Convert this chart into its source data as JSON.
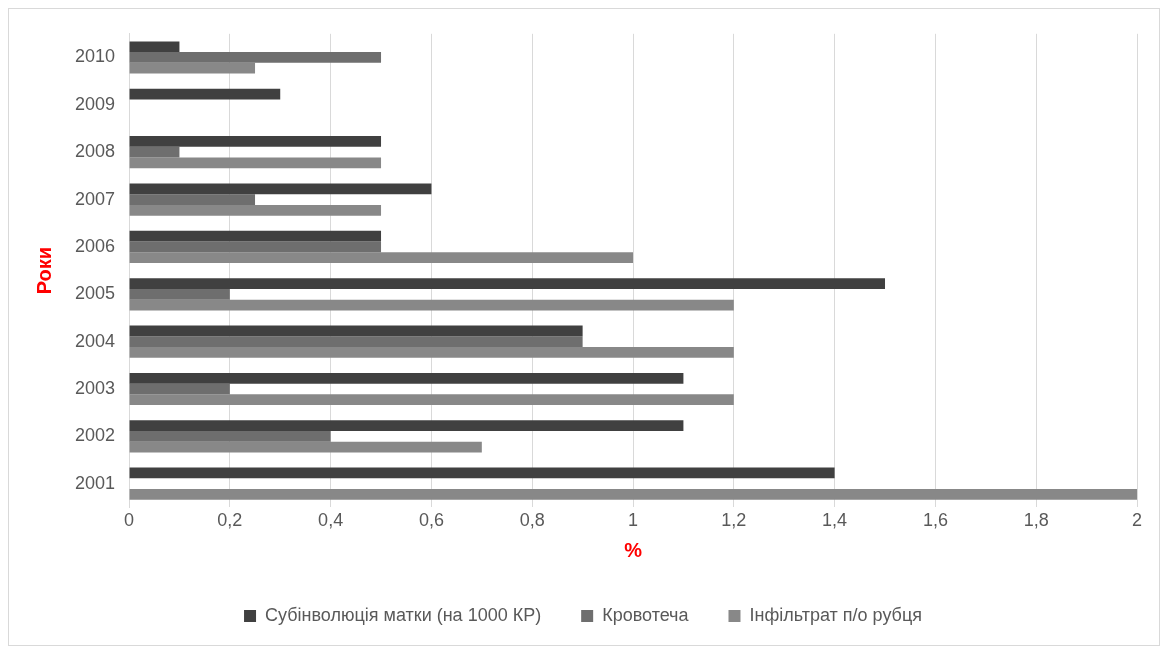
{
  "chart_data": {
    "type": "bar",
    "orientation": "horizontal",
    "xlabel": "%",
    "ylabel": "Роки",
    "categories": [
      "2010",
      "2009",
      "2008",
      "2007",
      "2006",
      "2005",
      "2004",
      "2003",
      "2002",
      "2001"
    ],
    "series": [
      {
        "name": "Субінволюція матки (на 1000 КР)",
        "color": "#404040",
        "values": [
          0.1,
          0.3,
          0.5,
          0.6,
          0.5,
          1.5,
          0.9,
          1.1,
          1.1,
          1.4
        ]
      },
      {
        "name": "Кровотеча",
        "color": "#6e6e6e",
        "values": [
          0.5,
          0,
          0.1,
          0.25,
          0.5,
          0.2,
          0.9,
          0.2,
          0.4,
          0
        ]
      },
      {
        "name": "Інфільтрат п/о рубця",
        "color": "#888888",
        "values": [
          0.25,
          0,
          0.5,
          0.5,
          1,
          1.2,
          1.2,
          1.2,
          0.7,
          2
        ]
      }
    ],
    "xlim": [
      0,
      2
    ],
    "xticks": [
      0,
      {
        "value": 0.2,
        "label": "0,2"
      },
      {
        "value": 0.4,
        "label": "0,4"
      },
      {
        "value": 0.6,
        "label": "0,6"
      },
      {
        "value": 0.8,
        "label": "0,8"
      },
      1,
      {
        "value": 1.2,
        "label": "1,2"
      },
      {
        "value": 1.4,
        "label": "1,4"
      },
      {
        "value": 1.6,
        "label": "1,6"
      },
      {
        "value": 1.8,
        "label": "1,8"
      },
      2
    ],
    "grid": "x",
    "legend": "bottom"
  }
}
